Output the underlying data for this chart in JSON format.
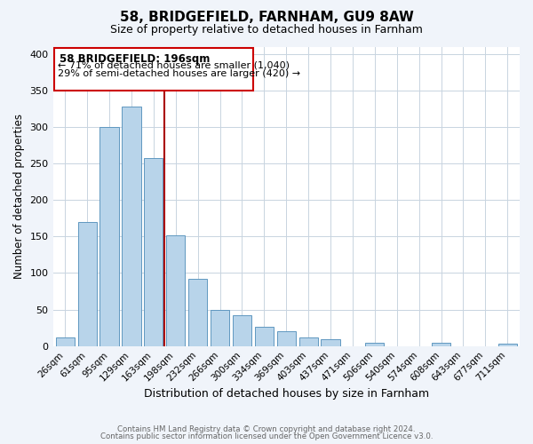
{
  "title": "58, BRIDGEFIELD, FARNHAM, GU9 8AW",
  "subtitle": "Size of property relative to detached houses in Farnham",
  "xlabel": "Distribution of detached houses by size in Farnham",
  "ylabel": "Number of detached properties",
  "bar_labels": [
    "26sqm",
    "61sqm",
    "95sqm",
    "129sqm",
    "163sqm",
    "198sqm",
    "232sqm",
    "266sqm",
    "300sqm",
    "334sqm",
    "369sqm",
    "403sqm",
    "437sqm",
    "471sqm",
    "506sqm",
    "540sqm",
    "574sqm",
    "608sqm",
    "643sqm",
    "677sqm",
    "711sqm"
  ],
  "bar_heights": [
    12,
    170,
    300,
    328,
    258,
    152,
    92,
    50,
    42,
    27,
    20,
    12,
    9,
    0,
    4,
    0,
    0,
    4,
    0,
    0,
    3
  ],
  "bar_color": "#b8d4ea",
  "bar_edge_color": "#6098c0",
  "marker_line_color": "#aa0000",
  "annotation_title": "58 BRIDGEFIELD: 196sqm",
  "annotation_line1": "← 71% of detached houses are smaller (1,040)",
  "annotation_line2": "29% of semi-detached houses are larger (420) →",
  "annotation_box_color": "#ffffff",
  "annotation_box_edge": "#cc0000",
  "ylim": [
    0,
    410
  ],
  "yticks": [
    0,
    50,
    100,
    150,
    200,
    250,
    300,
    350,
    400
  ],
  "footer1": "Contains HM Land Registry data © Crown copyright and database right 2024.",
  "footer2": "Contains public sector information licensed under the Open Government Licence v3.0.",
  "background_color": "#f0f4fa",
  "plot_background": "#ffffff",
  "grid_color": "#c8d4e0"
}
